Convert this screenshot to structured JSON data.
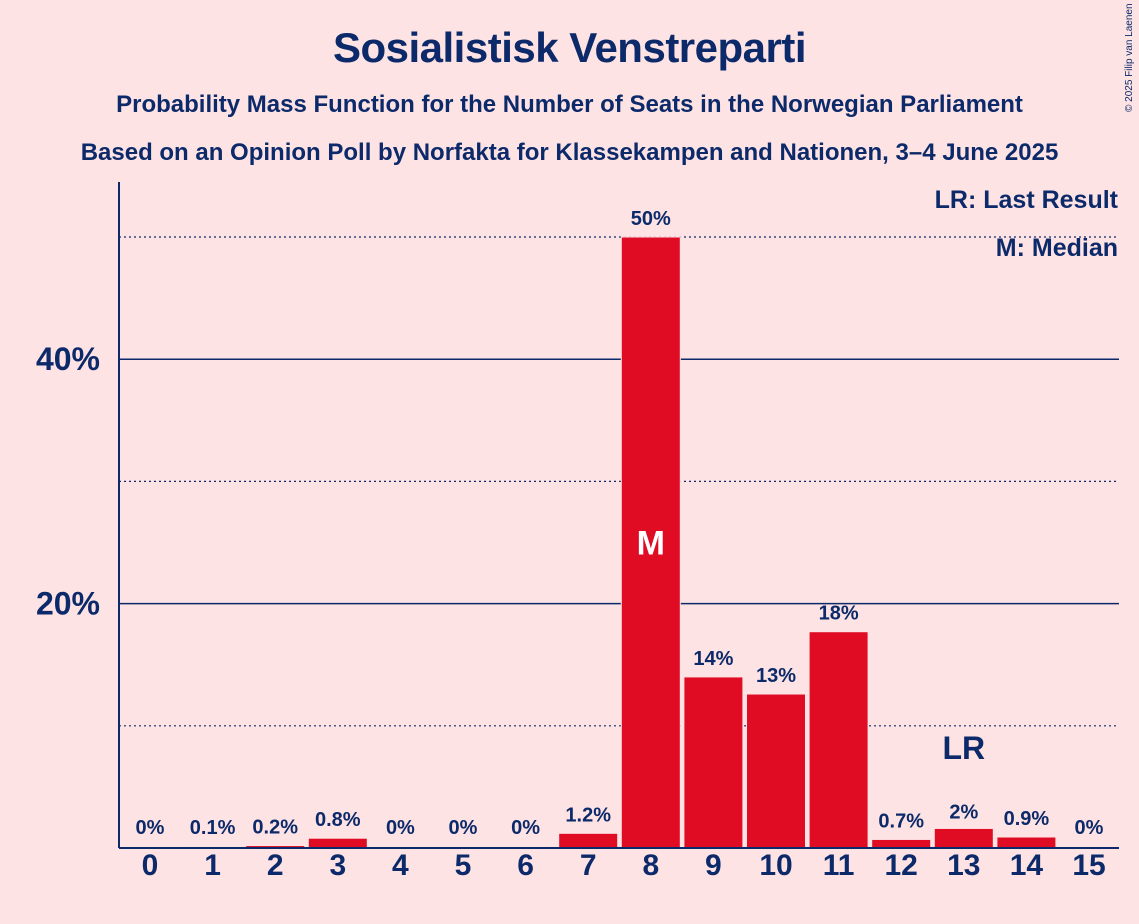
{
  "title": "Sosialistisk Venstreparti",
  "subtitle_line1": "Probability Mass Function for the Number of Seats in the Norwegian Parliament",
  "subtitle_line2": "Based on an Opinion Poll by Norfakta for Klassekampen and Nationen, 3–4 June 2025",
  "copyright": "© 2025 Filip van Laenen",
  "legend": {
    "last_result": "LR: Last Result",
    "median": "M: Median"
  },
  "colors": {
    "background": "#fde3e4",
    "bar": "#df0c24",
    "text": "#0c2a6a"
  },
  "chart_data": {
    "type": "bar",
    "categories": [
      "0",
      "1",
      "2",
      "3",
      "4",
      "5",
      "6",
      "7",
      "8",
      "9",
      "10",
      "11",
      "12",
      "13",
      "14",
      "15"
    ],
    "values": [
      0,
      0.1,
      0.2,
      0.8,
      0,
      0,
      0,
      1.2,
      50,
      14,
      12.6,
      17.7,
      0.7,
      1.6,
      0.9,
      0
    ],
    "data_labels": [
      "0%",
      "0.1%",
      "0.2%",
      "0.8%",
      "0%",
      "0%",
      "0%",
      "1.2%",
      "50%",
      "14%",
      "13%",
      "18%",
      "0.7%",
      "2%",
      "0.9%",
      "0%"
    ],
    "y_tick_labels": [
      {
        "value": 20,
        "label": "20%"
      },
      {
        "value": 40,
        "label": "40%"
      }
    ],
    "minor_gridlines": [
      10,
      30,
      50
    ],
    "ylim": [
      0,
      54.5
    ],
    "median_category": "8",
    "median_marker": "M",
    "last_result_category": "13",
    "last_result_marker": "LR",
    "legend_position": "top-right"
  }
}
